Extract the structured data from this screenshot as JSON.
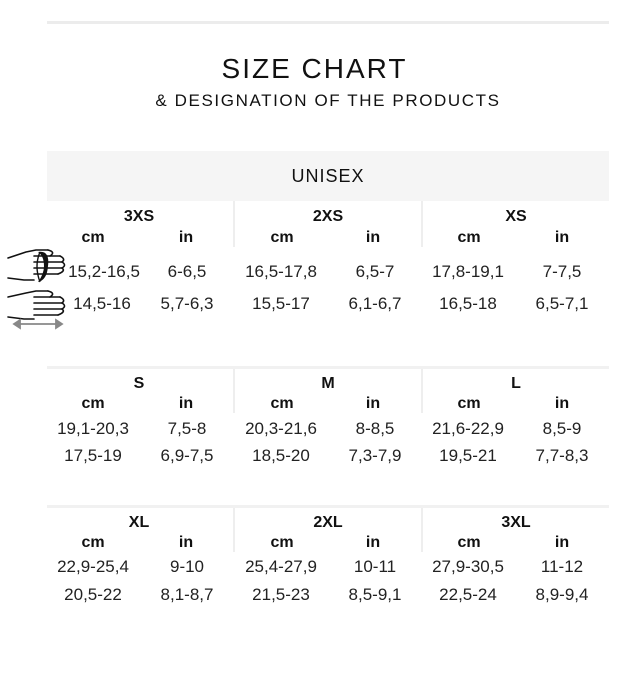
{
  "header": {
    "title": "SIZE CHART",
    "subtitle": "& DESIGNATION OF THE PRODUCTS"
  },
  "category": "UNISEX",
  "units": {
    "cm": "cm",
    "in": "in"
  },
  "icons": {
    "row1": "hand-circumference-icon",
    "row2": "hand-width-icon"
  },
  "sizes": [
    {
      "size": "3XS",
      "row1_cm": "15,2-16,5",
      "row1_in": "6-6,5",
      "row2_cm": "14,5-16",
      "row2_in": "5,7-6,3"
    },
    {
      "size": "2XS",
      "row1_cm": "16,5-17,8",
      "row1_in": "6,5-7",
      "row2_cm": "15,5-17",
      "row2_in": "6,1-6,7"
    },
    {
      "size": "XS",
      "row1_cm": "17,8-19,1",
      "row1_in": "7-7,5",
      "row2_cm": "16,5-18",
      "row2_in": "6,5-7,1"
    },
    {
      "size": "S",
      "row1_cm": "19,1-20,3",
      "row1_in": "7,5-8",
      "row2_cm": "17,5-19",
      "row2_in": "6,9-7,5"
    },
    {
      "size": "M",
      "row1_cm": "20,3-21,6",
      "row1_in": "8-8,5",
      "row2_cm": "18,5-20",
      "row2_in": "7,3-7,9"
    },
    {
      "size": "L",
      "row1_cm": "21,6-22,9",
      "row1_in": "8,5-9",
      "row2_cm": "19,5-21",
      "row2_in": "7,7-8,3"
    },
    {
      "size": "XL",
      "row1_cm": "22,9-25,4",
      "row1_in": "9-10",
      "row2_cm": "20,5-22",
      "row2_in": "8,1-8,7"
    },
    {
      "size": "2XL",
      "row1_cm": "25,4-27,9",
      "row1_in": "10-11",
      "row2_cm": "21,5-23",
      "row2_in": "8,5-9,1"
    },
    {
      "size": "3XL",
      "row1_cm": "27,9-30,5",
      "row1_in": "11-12",
      "row2_cm": "22,5-24",
      "row2_in": "8,9-9,4"
    }
  ]
}
